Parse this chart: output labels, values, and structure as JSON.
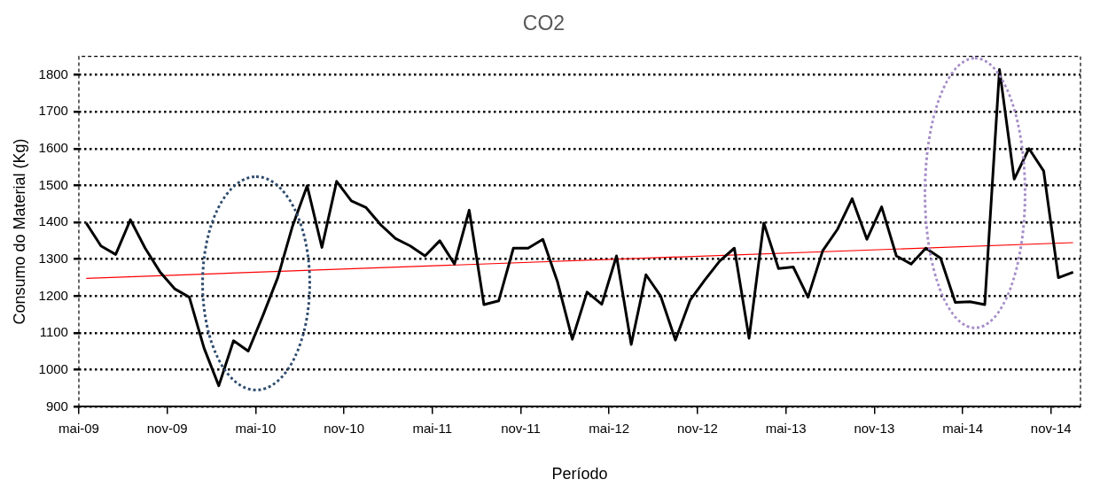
{
  "chart_data": {
    "type": "line",
    "title": "CO2",
    "xlabel": "Período",
    "ylabel": "Consumo do Material (Kg)",
    "x": [
      "2009-05-16",
      "2009-06-16",
      "2009-07-16",
      "2009-08-16",
      "2009-09-16",
      "2009-10-16",
      "2009-11-16",
      "2009-12-16",
      "2010-01-16",
      "2010-02-16",
      "2010-03-16",
      "2010-04-16",
      "2010-05-16",
      "2010-06-16",
      "2010-07-16",
      "2010-08-16",
      "2010-09-16",
      "2010-10-16",
      "2010-11-16",
      "2010-12-16",
      "2011-01-16",
      "2011-02-16",
      "2011-03-16",
      "2011-04-16",
      "2011-05-16",
      "2011-06-16",
      "2011-07-16",
      "2011-08-16",
      "2011-09-16",
      "2011-10-16",
      "2011-11-16",
      "2011-12-16",
      "2012-01-16",
      "2012-02-16",
      "2012-03-16",
      "2012-04-16",
      "2012-05-16",
      "2012-06-16",
      "2012-07-16",
      "2012-08-16",
      "2012-09-16",
      "2012-10-16",
      "2012-11-16",
      "2012-12-16",
      "2013-01-16",
      "2013-02-16",
      "2013-03-16",
      "2013-04-16",
      "2013-05-16",
      "2013-06-16",
      "2013-07-16",
      "2013-08-16",
      "2013-09-16",
      "2013-10-16",
      "2013-11-16",
      "2013-12-16",
      "2014-01-16",
      "2014-02-16",
      "2014-03-16",
      "2014-04-16",
      "2014-05-16",
      "2014-06-16",
      "2014-07-16",
      "2014-08-16",
      "2014-09-16",
      "2014-10-16",
      "2014-11-16",
      "2014-12-16"
    ],
    "series": [
      {
        "color": "#000000",
        "values": [
          1398,
          1336,
          1313,
          1407,
          1330,
          1266,
          1220,
          1197,
          1059,
          957,
          1079,
          1051,
          1148,
          1250,
          1389,
          1499,
          1332,
          1511,
          1458,
          1440,
          1393,
          1356,
          1336,
          1309,
          1350,
          1287,
          1433,
          1177,
          1187,
          1330,
          1330,
          1354,
          1238,
          1083,
          1211,
          1178,
          1309,
          1069,
          1258,
          1200,
          1081,
          1189,
          1244,
          1295,
          1330,
          1086,
          1398,
          1275,
          1279,
          1197,
          1323,
          1381,
          1464,
          1354,
          1442,
          1309,
          1287,
          1330,
          1303,
          1183,
          1185,
          1177,
          1814,
          1517,
          1600,
          1539,
          1250,
          1265
        ]
      },
      {
        "type": "line",
        "color": "#ff0000",
        "x": [
          "2009-05-16",
          "2014-12-16"
        ],
        "values": [
          1248,
          1345
        ]
      }
    ],
    "xlim": [
      "2009-05",
      "2015-01"
    ],
    "xticks": [
      {
        "value": "2009-05",
        "label": "mai-09"
      },
      {
        "value": "2009-11",
        "label": "nov-09"
      },
      {
        "value": "2010-05",
        "label": "mai-10"
      },
      {
        "value": "2010-11",
        "label": "nov-10"
      },
      {
        "value": "2011-05",
        "label": "mai-11"
      },
      {
        "value": "2011-11",
        "label": "nov-11"
      },
      {
        "value": "2012-05",
        "label": "mai-12"
      },
      {
        "value": "2012-11",
        "label": "nov-12"
      },
      {
        "value": "2013-05",
        "label": "mai-13"
      },
      {
        "value": "2013-11",
        "label": "nov-13"
      },
      {
        "value": "2014-05",
        "label": "mai-14"
      },
      {
        "value": "2014-11",
        "label": "nov-14"
      }
    ],
    "ylim": [
      900,
      1850
    ],
    "yticks": [
      900,
      1000,
      1100,
      1200,
      1300,
      1400,
      1500,
      1600,
      1700,
      1800
    ],
    "grid": "y",
    "legend": false,
    "marker": "none",
    "line_style": "solid"
  }
}
